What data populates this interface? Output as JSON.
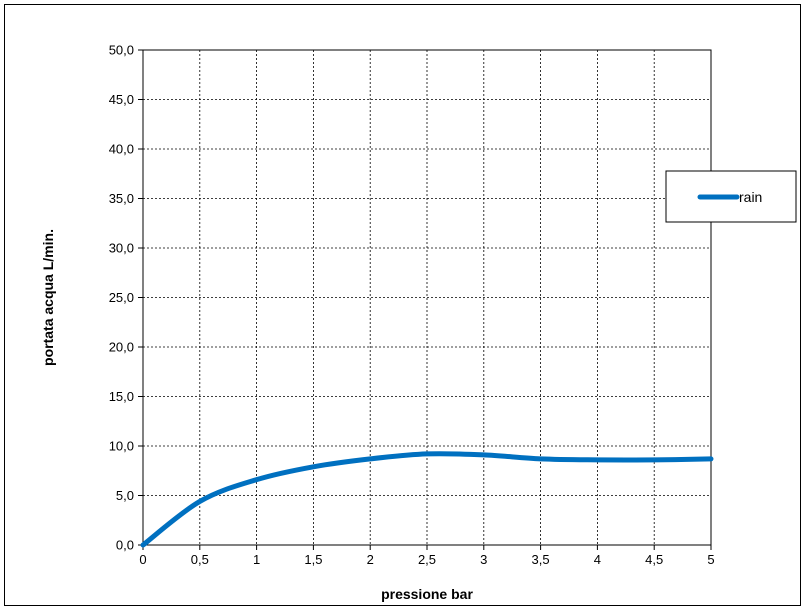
{
  "chart_data": {
    "type": "line",
    "title": "",
    "xlabel": "pressione bar",
    "ylabel": "portata acqua  L/min.",
    "xlim": [
      0,
      5
    ],
    "ylim": [
      0,
      50
    ],
    "x_ticks": [
      "0",
      "0,5",
      "1",
      "1,5",
      "2",
      "2,5",
      "3",
      "3,5",
      "4",
      "4,5",
      "5"
    ],
    "y_ticks": [
      "0,0",
      "5,0",
      "10,0",
      "15,0",
      "20,0",
      "25,0",
      "30,0",
      "35,0",
      "40,0",
      "45,0",
      "50,0"
    ],
    "grid": true,
    "legend_position": "right",
    "series": [
      {
        "name": "rain",
        "color": "#0070c0",
        "x": [
          0,
          0.5,
          1,
          1.5,
          2,
          2.5,
          3,
          3.5,
          4,
          4.5,
          5
        ],
        "y": [
          0.0,
          4.4,
          6.6,
          7.9,
          8.7,
          9.2,
          9.1,
          8.7,
          8.6,
          8.6,
          8.7
        ]
      }
    ]
  }
}
